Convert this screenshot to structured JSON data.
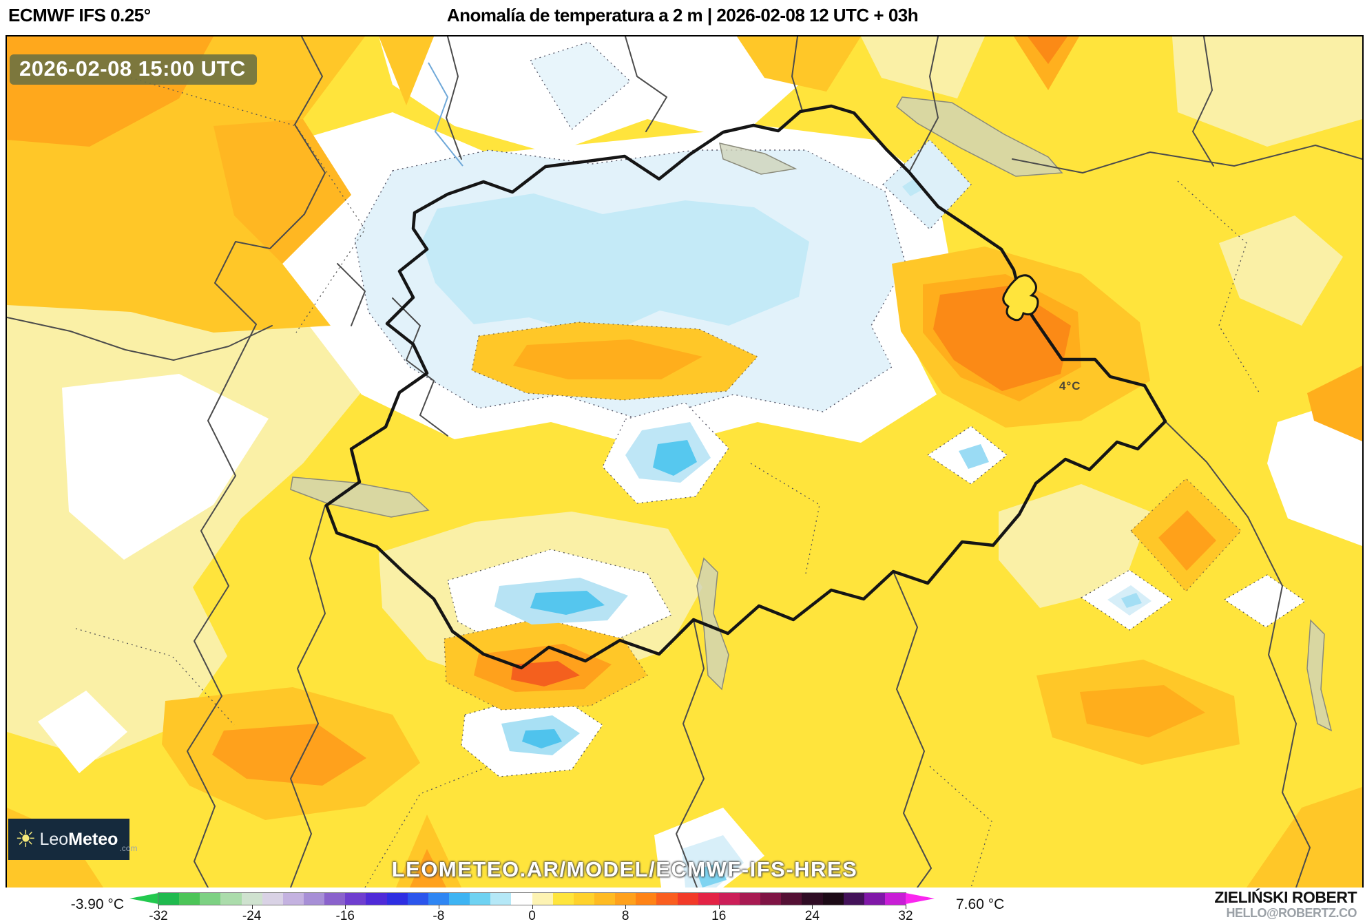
{
  "header": {
    "model": "ECMWF IFS 0.25°",
    "title": "Anomalía de temperatura a 2 m | 2026-02-08 12 UTC + 03h"
  },
  "map": {
    "timestamp": "2026-02-08 15:00 UTC",
    "point_label": "4°C",
    "watermark": "LEOMETEO.AR/MODEL/ECMWF-IFS-HRES",
    "logo": {
      "leo": "Leo",
      "meteo": "Meteo",
      "suffix": ".com",
      "sun": "☀"
    }
  },
  "colorbar": {
    "min_label": "-3.90 °C",
    "max_label": "7.60 °C",
    "ticks": [
      "-32",
      "-24",
      "-16",
      "-8",
      "0",
      "8",
      "16",
      "24",
      "32"
    ],
    "tip_left_color": "#22c94e",
    "tip_right_color": "#fa26ef",
    "segments": [
      "#1fba4e",
      "#4cc558",
      "#7dd183",
      "#abdcab",
      "#cfe2cf",
      "#d9d2e5",
      "#c4b2e0",
      "#a78fd6",
      "#8a62cc",
      "#6f3ecf",
      "#4f2ad8",
      "#2e2ee2",
      "#2b55ec",
      "#2f86f3",
      "#3eb4f3",
      "#6fd2f2",
      "#b5e8f7",
      "#ffffff",
      "#fdf3b3",
      "#ffe53c",
      "#ffd22c",
      "#ffbb22",
      "#ffa11c",
      "#ff8316",
      "#fa5e1f",
      "#f23a28",
      "#e32345",
      "#cc1e58",
      "#a81a52",
      "#7f1444",
      "#541034",
      "#2f0c24",
      "#1c0a16",
      "#431259",
      "#8018a8",
      "#c81ed6"
    ]
  },
  "credit": {
    "name": "ZIELIŃSKI ROBERT",
    "email": "HELLO@ROBERTZ.CO"
  },
  "colors": {
    "base_yellow": "#ffe43c",
    "warm_amber": "#ffc728",
    "hot_orange": "#fb8a16",
    "cold_blue": "#c4eaf7",
    "badge_bg": "#6a7042"
  }
}
